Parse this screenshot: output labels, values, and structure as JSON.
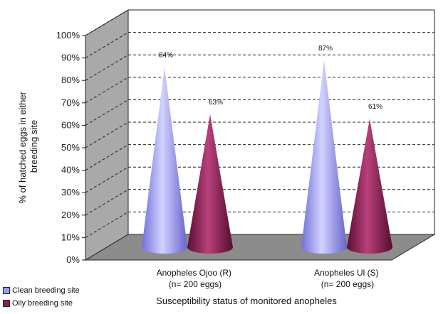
{
  "chart_data": {
    "type": "bar",
    "shape": "cone-3d",
    "categories": [
      [
        "Anopheles Ojoo (R)",
        "(n= 200 eggs)"
      ],
      [
        "Anopheles Ul (S)",
        "(n= 200 eggs)"
      ]
    ],
    "series": [
      {
        "name": "Clean breeding site",
        "values": [
          84,
          87
        ],
        "labels": [
          "84%",
          "87%"
        ],
        "color": "#9b9bf0"
      },
      {
        "name": "Oily breeding site",
        "values": [
          63,
          61
        ],
        "labels": [
          "63%",
          "61%"
        ],
        "color": "#8c1f52"
      }
    ],
    "xlabel": "Susceptibility status of monitored anopheles",
    "ylabel": [
      "% of hatched eggs in either",
      "breeding site"
    ],
    "ylim": [
      0,
      100
    ],
    "yticks": [
      "0%",
      "10%",
      "20%",
      "30%",
      "40%",
      "50%",
      "60%",
      "70%",
      "80%",
      "90%",
      "100%"
    ],
    "grid": true,
    "legend_position": "bottom-left",
    "colors": {
      "wall": "#a9a9a9",
      "floor": "#8c8c8c",
      "grid": "#222222"
    }
  }
}
